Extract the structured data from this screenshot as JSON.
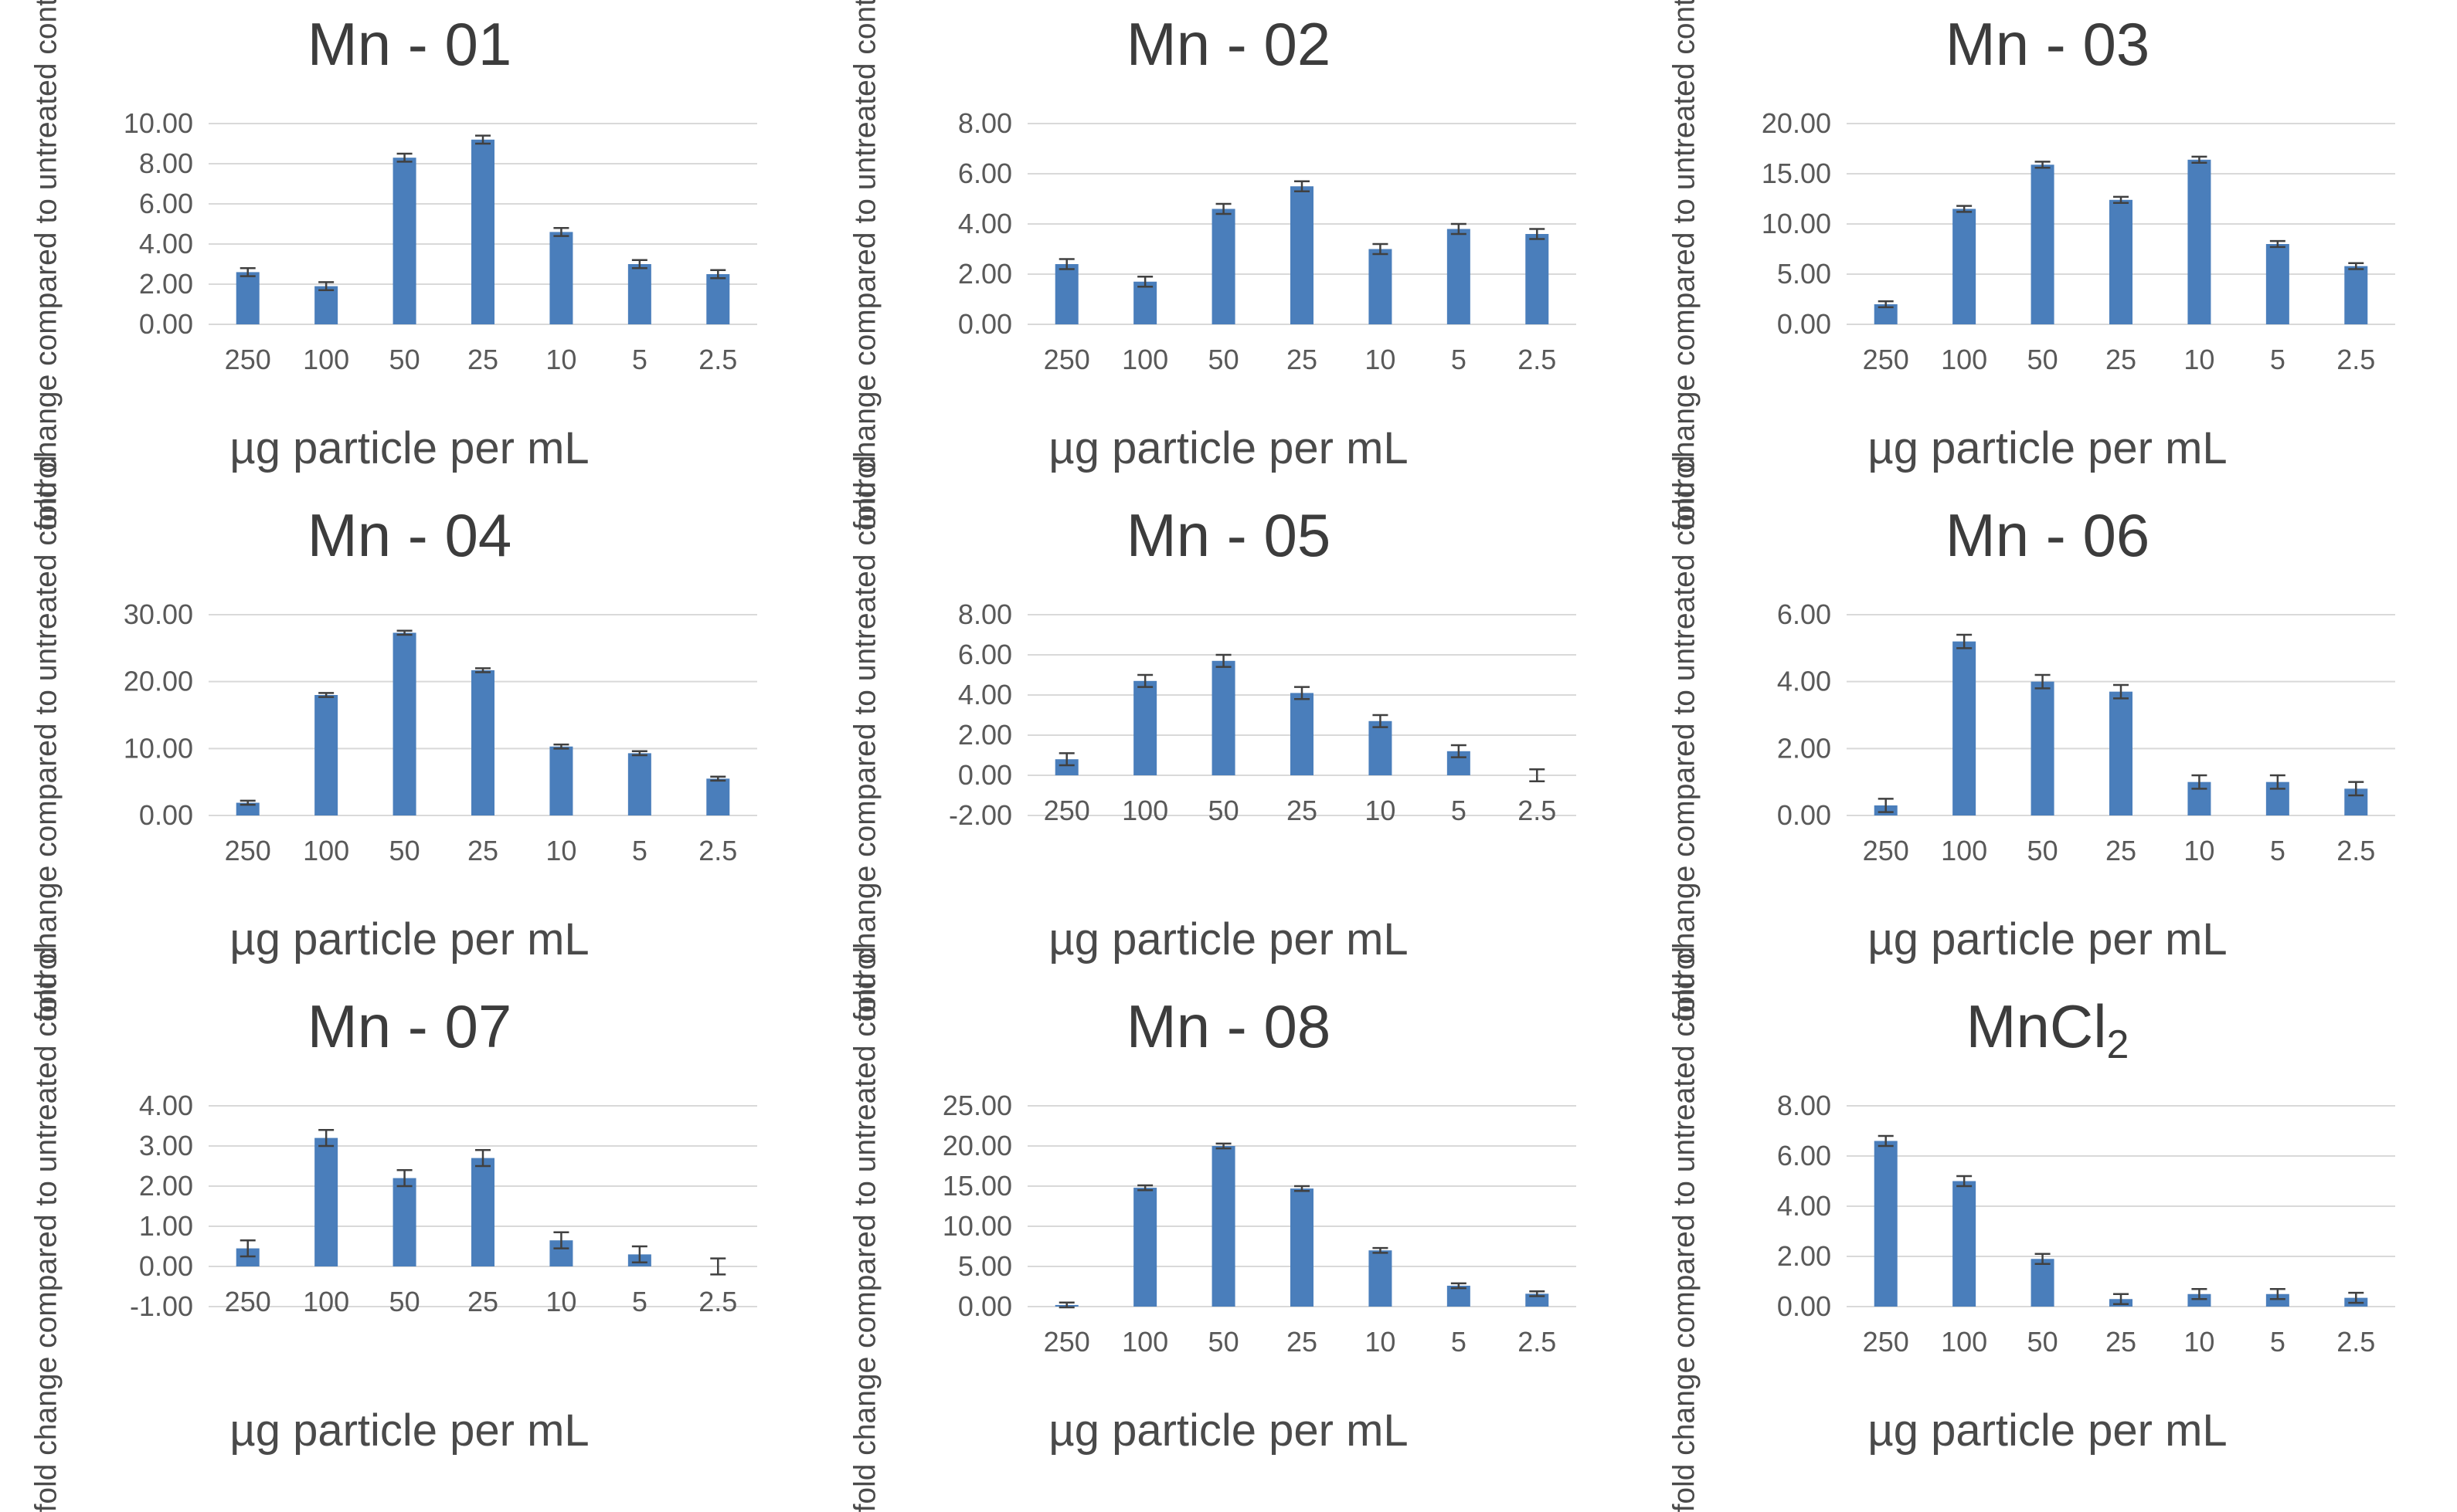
{
  "chart_data": [
    {
      "type": "bar",
      "title": "Mn - 01",
      "xlabel": "µg particle per mL",
      "ylabel": "fold change compared to untreated control",
      "categories": [
        "250",
        "100",
        "50",
        "25",
        "10",
        "5",
        "2.5"
      ],
      "values": [
        2.6,
        1.9,
        8.3,
        9.2,
        4.6,
        3.0,
        2.5
      ],
      "errors": [
        0.2,
        0.2,
        0.2,
        0.2,
        0.2,
        0.2,
        0.2
      ],
      "ylim": [
        0,
        10
      ],
      "yticks": [
        "0.00",
        "2.00",
        "4.00",
        "6.00",
        "8.00",
        "10.00"
      ],
      "grid": true,
      "color": "#4a7ebb"
    },
    {
      "type": "bar",
      "title": "Mn - 02",
      "xlabel": "µg particle per mL",
      "ylabel": "fold change compared to untreated control",
      "categories": [
        "250",
        "100",
        "50",
        "25",
        "10",
        "5",
        "2.5"
      ],
      "values": [
        2.4,
        1.7,
        4.6,
        5.5,
        3.0,
        3.8,
        3.6
      ],
      "errors": [
        0.2,
        0.2,
        0.2,
        0.2,
        0.2,
        0.2,
        0.2
      ],
      "ylim": [
        0,
        8
      ],
      "yticks": [
        "0.00",
        "2.00",
        "4.00",
        "6.00",
        "8.00"
      ],
      "grid": true,
      "color": "#4a7ebb"
    },
    {
      "type": "bar",
      "title": "Mn - 03",
      "xlabel": "µg particle per mL",
      "ylabel": "fold change compared to untreated control",
      "categories": [
        "250",
        "100",
        "50",
        "25",
        "10",
        "5",
        "2.5"
      ],
      "values": [
        2.0,
        11.5,
        15.9,
        12.4,
        16.4,
        8.0,
        5.8
      ],
      "errors": [
        0.3,
        0.3,
        0.3,
        0.3,
        0.3,
        0.3,
        0.3
      ],
      "ylim": [
        0,
        20
      ],
      "yticks": [
        "0.00",
        "5.00",
        "10.00",
        "15.00",
        "20.00"
      ],
      "grid": true,
      "color": "#4a7ebb"
    },
    {
      "type": "bar",
      "title": "Mn - 04",
      "xlabel": "µg particle per mL",
      "ylabel": "fold change compared to untreated control",
      "categories": [
        "250",
        "100",
        "50",
        "25",
        "10",
        "5",
        "2.5"
      ],
      "values": [
        1.9,
        18.0,
        27.3,
        21.7,
        10.3,
        9.3,
        5.5
      ],
      "errors": [
        0.3,
        0.3,
        0.3,
        0.3,
        0.3,
        0.3,
        0.3
      ],
      "ylim": [
        0,
        30
      ],
      "yticks": [
        "0.00",
        "10.00",
        "20.00",
        "30.00"
      ],
      "grid": true,
      "color": "#4a7ebb"
    },
    {
      "type": "bar",
      "title": "Mn - 05",
      "xlabel": "µg particle per mL",
      "ylabel": "fold change compared to untreated control",
      "categories": [
        "250",
        "100",
        "50",
        "25",
        "10",
        "5",
        "2.5"
      ],
      "values": [
        0.8,
        4.7,
        5.7,
        4.1,
        2.7,
        1.2,
        0.0
      ],
      "errors": [
        0.3,
        0.3,
        0.3,
        0.3,
        0.3,
        0.3,
        0.3
      ],
      "ylim": [
        -2,
        8
      ],
      "yticks": [
        "-2.00",
        "0.00",
        "2.00",
        "4.00",
        "6.00",
        "8.00"
      ],
      "grid": true,
      "color": "#4a7ebb"
    },
    {
      "type": "bar",
      "title": "Mn - 06",
      "xlabel": "µg particle per mL",
      "ylabel": "fold change compared to untreated control",
      "categories": [
        "250",
        "100",
        "50",
        "25",
        "10",
        "5",
        "2.5"
      ],
      "values": [
        0.3,
        5.2,
        4.0,
        3.7,
        1.0,
        1.0,
        0.8
      ],
      "errors": [
        0.2,
        0.2,
        0.2,
        0.2,
        0.2,
        0.2,
        0.2
      ],
      "ylim": [
        0,
        6
      ],
      "yticks": [
        "0.00",
        "2.00",
        "4.00",
        "6.00"
      ],
      "grid": true,
      "color": "#4a7ebb"
    },
    {
      "type": "bar",
      "title": "Mn - 07",
      "xlabel": "µg particle per mL",
      "ylabel": "fold change compared to untreated control",
      "categories": [
        "250",
        "100",
        "50",
        "25",
        "10",
        "5",
        "2.5"
      ],
      "values": [
        0.45,
        3.2,
        2.2,
        2.7,
        0.65,
        0.3,
        0.0
      ],
      "errors": [
        0.2,
        0.2,
        0.2,
        0.2,
        0.2,
        0.2,
        0.2
      ],
      "ylim": [
        -1,
        4
      ],
      "yticks": [
        "-1.00",
        "0.00",
        "1.00",
        "2.00",
        "3.00",
        "4.00"
      ],
      "grid": true,
      "color": "#4a7ebb"
    },
    {
      "type": "bar",
      "title": "Mn - 08",
      "xlabel": "µg particle per mL",
      "ylabel": "fold change compared to untreated control",
      "categories": [
        "250",
        "100",
        "50",
        "25",
        "10",
        "5",
        "2.5"
      ],
      "values": [
        0.2,
        14.8,
        20.0,
        14.7,
        7.0,
        2.6,
        1.6
      ],
      "errors": [
        0.3,
        0.3,
        0.3,
        0.3,
        0.3,
        0.3,
        0.3
      ],
      "ylim": [
        0,
        25
      ],
      "yticks": [
        "0.00",
        "5.00",
        "10.00",
        "15.00",
        "20.00",
        "25.00"
      ],
      "grid": true,
      "color": "#4a7ebb"
    },
    {
      "type": "bar",
      "title": "MnCl",
      "title_sub": "2",
      "xlabel": "µg particle per mL",
      "ylabel": "fold change compared to untreated control",
      "categories": [
        "250",
        "100",
        "50",
        "25",
        "10",
        "5",
        "2.5"
      ],
      "values": [
        6.6,
        5.0,
        1.9,
        0.3,
        0.5,
        0.5,
        0.35
      ],
      "errors": [
        0.2,
        0.2,
        0.2,
        0.2,
        0.2,
        0.2,
        0.2
      ],
      "ylim": [
        0,
        8
      ],
      "yticks": [
        "0.00",
        "2.00",
        "4.00",
        "6.00",
        "8.00"
      ],
      "grid": true,
      "color": "#4a7ebb"
    }
  ]
}
